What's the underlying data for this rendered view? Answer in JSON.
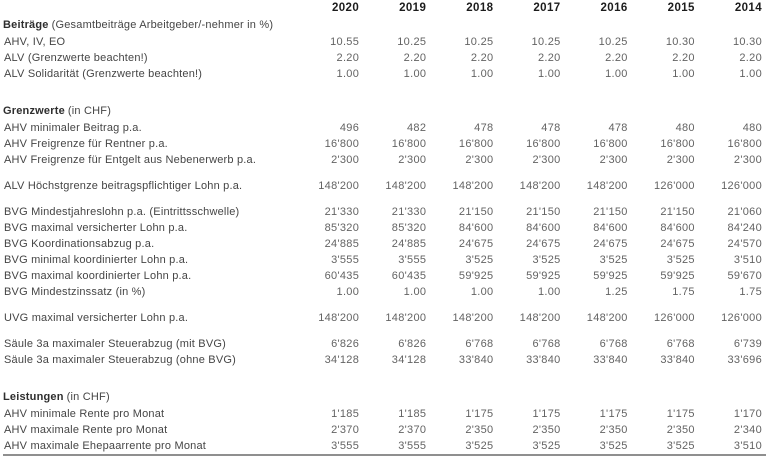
{
  "colors": {
    "text_header": "#1c1c1c",
    "text_label": "#454545",
    "text_value": "#636363",
    "rule": "#8f8f8f",
    "background": "#ffffff"
  },
  "table": {
    "years": [
      "2020",
      "2019",
      "2018",
      "2017",
      "2016",
      "2015",
      "2014"
    ],
    "sections": [
      {
        "title_bold": "Beiträge",
        "title_rest": "(Gesamtbeiträge Arbeitgeber/-nehmer in %)",
        "groups": [
          {
            "rows": [
              {
                "label": "AHV, IV, EO",
                "values": [
                  "10.55",
                  "10.25",
                  "10.25",
                  "10.25",
                  "10.25",
                  "10.30",
                  "10.30"
                ]
              },
              {
                "label": "ALV (Grenzwerte beachten!)",
                "values": [
                  "2.20",
                  "2.20",
                  "2.20",
                  "2.20",
                  "2.20",
                  "2.20",
                  "2.20"
                ]
              },
              {
                "label": "ALV Solidarität (Grenzwerte beachten!)",
                "values": [
                  "1.00",
                  "1.00",
                  "1.00",
                  "1.00",
                  "1.00",
                  "1.00",
                  "1.00"
                ]
              }
            ]
          }
        ]
      },
      {
        "title_bold": "Grenzwerte",
        "title_rest": "(in CHF)",
        "groups": [
          {
            "rows": [
              {
                "label": "AHV minimaler Beitrag p.a.",
                "values": [
                  "496",
                  "482",
                  "478",
                  "478",
                  "478",
                  "480",
                  "480"
                ]
              },
              {
                "label": "AHV Freigrenze für Rentner p.a.",
                "values": [
                  "16'800",
                  "16'800",
                  "16'800",
                  "16'800",
                  "16'800",
                  "16'800",
                  "16'800"
                ]
              },
              {
                "label": "AHV Freigrenze für Entgelt aus Nebenerwerb p.a.",
                "values": [
                  "2'300",
                  "2'300",
                  "2'300",
                  "2'300",
                  "2'300",
                  "2'300",
                  "2'300"
                ]
              }
            ]
          },
          {
            "rows": [
              {
                "label": "ALV Höchstgrenze beitragspflichtiger Lohn p.a.",
                "values": [
                  "148'200",
                  "148'200",
                  "148'200",
                  "148'200",
                  "148'200",
                  "126'000",
                  "126'000"
                ]
              }
            ]
          },
          {
            "rows": [
              {
                "label": "BVG Mindestjahreslohn p.a. (Eintrittsschwelle)",
                "values": [
                  "21'330",
                  "21'330",
                  "21'150",
                  "21'150",
                  "21'150",
                  "21'150",
                  "21'060"
                ]
              },
              {
                "label": "BVG maximal versicherter Lohn p.a.",
                "values": [
                  "85'320",
                  "85'320",
                  "84'600",
                  "84'600",
                  "84'600",
                  "84'600",
                  "84'240"
                ]
              },
              {
                "label": "BVG Koordinationsabzug p.a.",
                "values": [
                  "24'885",
                  "24'885",
                  "24'675",
                  "24'675",
                  "24'675",
                  "24'675",
                  "24'570"
                ]
              },
              {
                "label": "BVG minimal koordinierter Lohn p.a.",
                "values": [
                  "3'555",
                  "3'555",
                  "3'525",
                  "3'525",
                  "3'525",
                  "3'525",
                  "3'510"
                ]
              },
              {
                "label": "BVG maximal koordinierter Lohn p.a.",
                "values": [
                  "60'435",
                  "60'435",
                  "59'925",
                  "59'925",
                  "59'925",
                  "59'925",
                  "59'670"
                ]
              },
              {
                "label": "BVG Mindestzinssatz (in %)",
                "values": [
                  "1.00",
                  "1.00",
                  "1.00",
                  "1.00",
                  "1.25",
                  "1.75",
                  "1.75"
                ]
              }
            ]
          },
          {
            "rows": [
              {
                "label": "UVG maximal versicherter Lohn p.a.",
                "values": [
                  "148'200",
                  "148'200",
                  "148'200",
                  "148'200",
                  "148'200",
                  "126'000",
                  "126'000"
                ]
              }
            ]
          },
          {
            "rows": [
              {
                "label": "Säule 3a maximaler Steuerabzug (mit BVG)",
                "values": [
                  "6'826",
                  "6'826",
                  "6'768",
                  "6'768",
                  "6'768",
                  "6'768",
                  "6'739"
                ]
              },
              {
                "label": "Säule 3a maximaler Steuerabzug (ohne BVG)",
                "values": [
                  "34'128",
                  "34'128",
                  "33'840",
                  "33'840",
                  "33'840",
                  "33'840",
                  "33'696"
                ]
              }
            ]
          }
        ]
      },
      {
        "title_bold": "Leistungen",
        "title_rest": "(in CHF)",
        "groups": [
          {
            "rows": [
              {
                "label": "AHV minimale Rente pro Monat",
                "values": [
                  "1'185",
                  "1'185",
                  "1'175",
                  "1'175",
                  "1'175",
                  "1'175",
                  "1'170"
                ]
              },
              {
                "label": "AHV maximale Rente pro Monat",
                "values": [
                  "2'370",
                  "2'370",
                  "2'350",
                  "2'350",
                  "2'350",
                  "2'350",
                  "2'340"
                ]
              },
              {
                "label": "AHV maximale Ehepaarrente pro Monat",
                "values": [
                  "3'555",
                  "3'555",
                  "3'525",
                  "3'525",
                  "3'525",
                  "3'525",
                  "3'510"
                ]
              }
            ]
          }
        ]
      }
    ]
  }
}
